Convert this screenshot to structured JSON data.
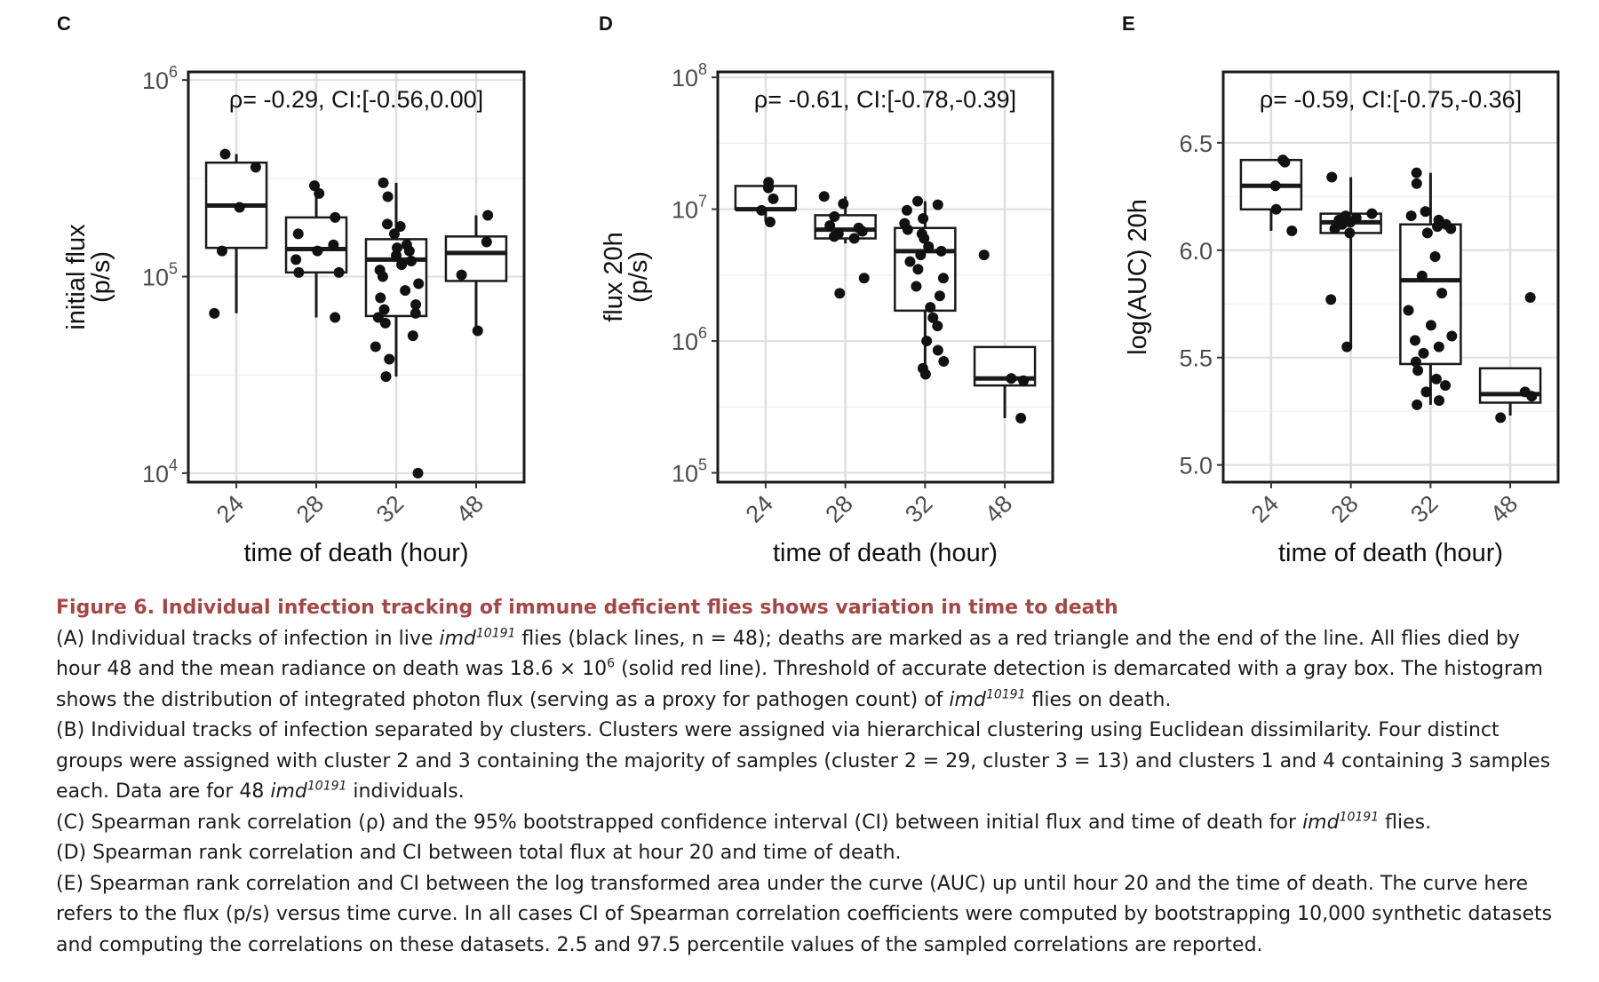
{
  "panels": [
    {
      "letter": "C",
      "annotation": "ρ= -0.29, CI:[-0.56,0.00]",
      "ylabel": [
        "initial flux",
        "(p/s)"
      ],
      "xlabel": "time of death (hour)"
    },
    {
      "letter": "D",
      "annotation": "ρ= -0.61, CI:[-0.78,-0.39]",
      "ylabel": [
        "flux 20h",
        "(p/s)"
      ],
      "xlabel": "time of death (hour)"
    },
    {
      "letter": "E",
      "annotation": "ρ= -0.59, CI:[-0.75,-0.36]",
      "ylabel": [
        "log(AUC) 20h"
      ],
      "xlabel": "time of death (hour)"
    }
  ],
  "chart_data": [
    {
      "type": "box",
      "panel": "C",
      "title": "ρ= -0.29, CI:[-0.56,0.00]",
      "xlabel": "time of death (hour)",
      "ylabel": "initial flux (p/s)",
      "categories": [
        "24",
        "28",
        "32",
        "48"
      ],
      "yscale": "log10",
      "ylim": [
        9000,
        1100000
      ],
      "yticks": [
        {
          "value": 10000,
          "base": "10",
          "exp": "4"
        },
        {
          "value": 100000,
          "base": "10",
          "exp": "5"
        },
        {
          "value": 1000000,
          "base": "10",
          "exp": "6"
        }
      ],
      "boxes": [
        {
          "category": "24",
          "q1": 140000,
          "median": 230000,
          "q3": 380000,
          "whislo": 65000,
          "whishi": 420000
        },
        {
          "category": "28",
          "q1": 105000,
          "median": 138000,
          "q3": 200000,
          "whislo": 62000,
          "whishi": 290000
        },
        {
          "category": "32",
          "q1": 63000,
          "median": 122000,
          "q3": 155000,
          "whislo": 31000,
          "whishi": 300000
        },
        {
          "category": "48",
          "q1": 95000,
          "median": 132000,
          "q3": 160000,
          "whislo": 53000,
          "whishi": 205000
        }
      ],
      "points": [
        {
          "category": "24",
          "values": [
            420000,
            360000,
            225000,
            135000,
            65000
          ]
        },
        {
          "category": "28",
          "values": [
            290000,
            265000,
            200000,
            165000,
            145000,
            135000,
            122000,
            105000,
            105000,
            62000
          ]
        },
        {
          "category": "32",
          "values": [
            300000,
            255000,
            185000,
            180000,
            165000,
            145000,
            140000,
            135000,
            128000,
            120000,
            115000,
            108000,
            100000,
            92000,
            85000,
            78000,
            72000,
            68000,
            65000,
            62000,
            58000,
            50000,
            44000,
            38000,
            31000,
            10000
          ]
        },
        {
          "category": "48",
          "values": [
            205000,
            150000,
            102000,
            53000
          ]
        }
      ]
    },
    {
      "type": "box",
      "panel": "D",
      "title": "ρ= -0.61, CI:[-0.78,-0.39]",
      "xlabel": "time of death (hour)",
      "ylabel": "flux 20h (p/s)",
      "categories": [
        "24",
        "28",
        "32",
        "48"
      ],
      "yscale": "log10",
      "ylim": [
        85000,
        110000000
      ],
      "yticks": [
        {
          "value": 100000,
          "base": "10",
          "exp": "5"
        },
        {
          "value": 1000000,
          "base": "10",
          "exp": "6"
        },
        {
          "value": 10000000,
          "base": "10",
          "exp": "7"
        },
        {
          "value": 100000000,
          "base": "10",
          "exp": "8"
        }
      ],
      "boxes": [
        {
          "category": "24",
          "q1": 10000000,
          "median": 10000000,
          "q3": 15000000,
          "whislo": 8000000,
          "whishi": 16000000
        },
        {
          "category": "28",
          "q1": 6000000,
          "median": 7000000,
          "q3": 9000000,
          "whislo": 5500000,
          "whishi": 12500000
        },
        {
          "category": "32",
          "q1": 1700000,
          "median": 4800000,
          "q3": 7200000,
          "whislo": 520000,
          "whishi": 11500000
        },
        {
          "category": "48",
          "q1": 460000,
          "median": 520000,
          "q3": 900000,
          "whislo": 260000,
          "whishi": 900000
        }
      ],
      "points": [
        {
          "category": "24",
          "values": [
            16000000,
            14500000,
            12000000,
            9800000,
            8000000
          ]
        },
        {
          "category": "28",
          "values": [
            12500000,
            11000000,
            8800000,
            7500000,
            7200000,
            6800000,
            6500000,
            6200000,
            6000000,
            3000000,
            2300000
          ]
        },
        {
          "category": "32",
          "values": [
            11500000,
            10800000,
            9800000,
            8500000,
            7800000,
            7000000,
            6500000,
            6000000,
            5200000,
            4800000,
            4500000,
            4000000,
            3500000,
            3000000,
            2600000,
            2200000,
            1800000,
            1500000,
            1300000,
            1000000,
            850000,
            700000,
            620000,
            560000
          ]
        },
        {
          "category": "48",
          "values": [
            4500000,
            520000,
            500000,
            260000
          ]
        }
      ]
    },
    {
      "type": "box",
      "panel": "E",
      "title": "ρ= -0.59, CI:[-0.75,-0.36]",
      "xlabel": "time of death (hour)",
      "ylabel": "log(AUC) 20h",
      "categories": [
        "24",
        "28",
        "32",
        "48"
      ],
      "yscale": "linear",
      "ylim": [
        4.92,
        6.83
      ],
      "yticks": [
        {
          "value": 5.0,
          "label": "5.0"
        },
        {
          "value": 5.5,
          "label": "5.5"
        },
        {
          "value": 6.0,
          "label": "6.0"
        },
        {
          "value": 6.5,
          "label": "6.5"
        }
      ],
      "boxes": [
        {
          "category": "24",
          "q1": 6.19,
          "median": 6.3,
          "q3": 6.42,
          "whislo": 6.09,
          "whishi": 6.42
        },
        {
          "category": "28",
          "q1": 6.08,
          "median": 6.13,
          "q3": 6.17,
          "whislo": 5.55,
          "whishi": 6.34
        },
        {
          "category": "32",
          "q1": 5.47,
          "median": 5.86,
          "q3": 6.12,
          "whislo": 5.28,
          "whishi": 6.36
        },
        {
          "category": "48",
          "q1": 5.29,
          "median": 5.33,
          "q3": 5.45,
          "whislo": 5.23,
          "whishi": 5.45
        }
      ],
      "points": [
        {
          "category": "24",
          "values": [
            6.42,
            6.41,
            6.3,
            6.19,
            6.09
          ]
        },
        {
          "category": "28",
          "values": [
            6.34,
            6.17,
            6.16,
            6.15,
            6.14,
            6.13,
            6.12,
            6.1,
            6.08,
            5.77,
            5.55
          ]
        },
        {
          "category": "32",
          "values": [
            6.36,
            6.31,
            6.18,
            6.16,
            6.14,
            6.12,
            6.11,
            6.1,
            6.08,
            5.97,
            5.88,
            5.8,
            5.72,
            5.65,
            5.6,
            5.58,
            5.55,
            5.52,
            5.48,
            5.44,
            5.4,
            5.37,
            5.34,
            5.3,
            5.28
          ]
        },
        {
          "category": "48",
          "values": [
            5.78,
            5.34,
            5.32,
            5.22
          ]
        }
      ]
    }
  ],
  "caption": {
    "title": "Figure 6.  Individual infection tracking of immune deficient flies shows variation in time to death",
    "a": {
      "t1": "(A) Individual tracks of infection in live ",
      "imd": "imd",
      "sup": "10191",
      "t2": " flies (black lines, n = 48); deaths are marked as a red triangle and the end of the line. All flies died by hour 48 and the mean radiance on death was 18.6 × 10",
      "exp": "6",
      "t3": " (solid red line). Threshold of accurate detection is demarcated with a gray box. The histogram shows the distribution of integrated photon flux (serving as a proxy for pathogen count) of ",
      "t4": " flies on death."
    },
    "b": {
      "t1": "(B) Individual tracks of infection separated by clusters. Clusters were assigned via hierarchical clustering using Euclidean dissimilarity. Four distinct groups were assigned with cluster 2 and 3 containing the majority of samples (cluster 2 = 29, cluster 3 = 13) and clusters 1 and 4 containing 3 samples each. Data are for 48 ",
      "t2": " individuals."
    },
    "c": {
      "t1": "(C) Spearman rank correlation (ρ) and the 95% bootstrapped confidence interval (CI) between initial flux and time of death for ",
      "t2": " flies."
    },
    "d": "(D) Spearman rank correlation and CI between total flux at hour 20 and time of death.",
    "e": "(E) Spearman rank correlation and CI between the log transformed area under the curve (AUC) up until hour 20 and the time of death. The curve here refers to the flux (p/s) versus time curve. In all cases CI of Spearman correlation coefficients were computed by bootstrapping 10,000 synthetic datasets and computing the correlations on these datasets. 2.5 and 97.5 percentile values of the sampled correlations are reported."
  }
}
